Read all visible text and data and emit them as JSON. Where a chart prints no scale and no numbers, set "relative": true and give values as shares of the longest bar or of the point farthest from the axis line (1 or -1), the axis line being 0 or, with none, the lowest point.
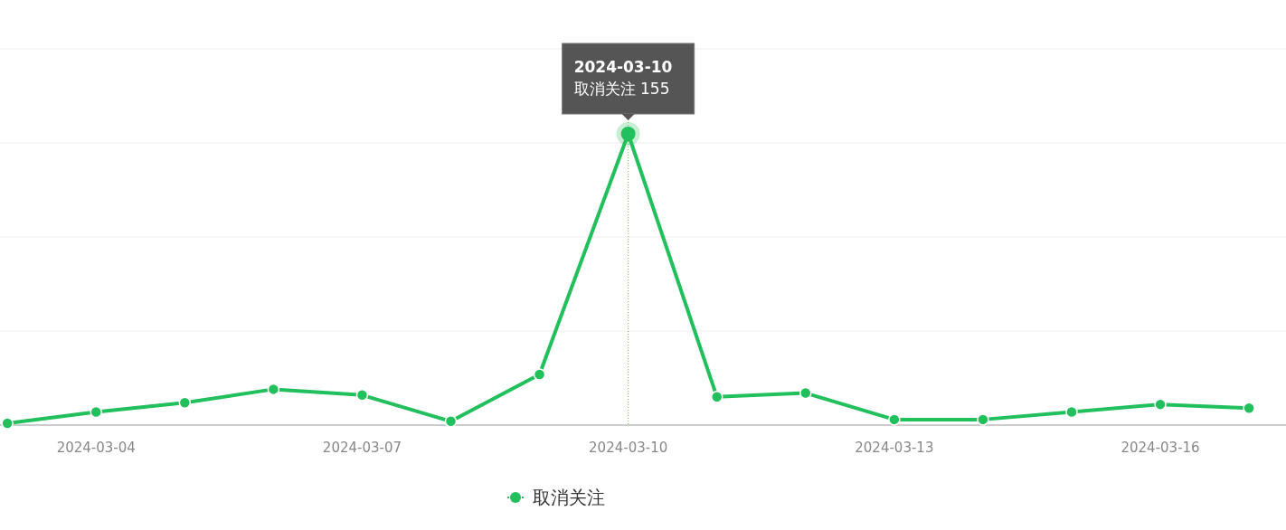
{
  "chart_data": {
    "type": "line",
    "x": [
      "2024-03-03",
      "2024-03-04",
      "2024-03-05",
      "2024-03-06",
      "2024-03-07",
      "2024-03-08",
      "2024-03-09",
      "2024-03-10",
      "2024-03-11",
      "2024-03-12",
      "2024-03-13",
      "2024-03-14",
      "2024-03-15",
      "2024-03-16",
      "2024-03-17"
    ],
    "series": [
      {
        "name": "取消关注",
        "color": "#22bf5d",
        "values": [
          0.006,
          0.045,
          0.077,
          0.123,
          0.103,
          0.013,
          0.174,
          1,
          0.097,
          0.11,
          0.019,
          0.019,
          0.045,
          0.071,
          0.058
        ]
      }
    ],
    "relative": true,
    "xlim": [
      "2024-03-02T22:00",
      "2024-03-17T10:00"
    ],
    "xticks": [
      "2024-03-04",
      "2024-03-07",
      "2024-03-10",
      "2024-03-13",
      "2024-03-16"
    ],
    "tick_labels": "x",
    "grid": "y",
    "legend": "bottom",
    "marker": "circle",
    "line_style": "solid",
    "ref_lines": [
      {
        "axis": "x",
        "value": "2024-03-10",
        "color": "#7cc242",
        "line_style": "dotted"
      }
    ],
    "annotations": [
      {
        "text": "2024-03-10\n取消关注 155",
        "x": "2024-03-10",
        "y": 1
      }
    ]
  }
}
